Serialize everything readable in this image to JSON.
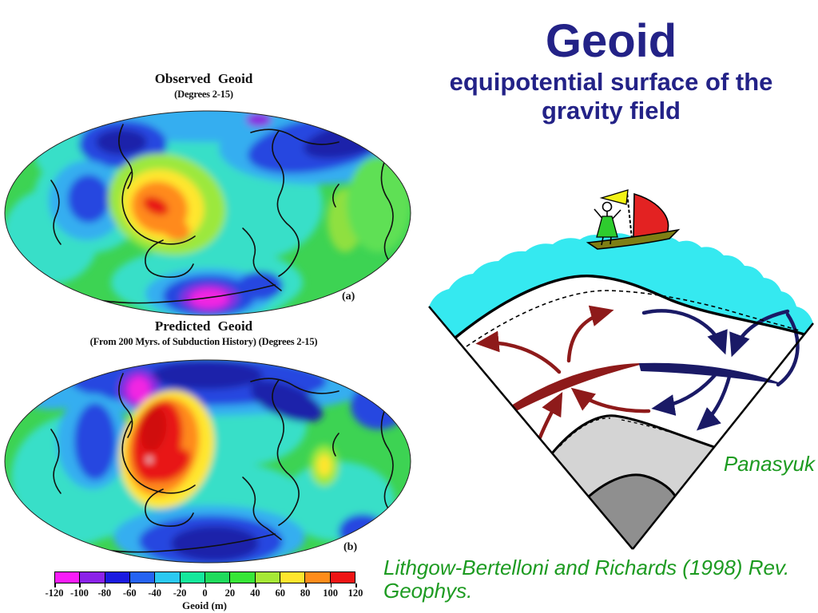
{
  "slide": {
    "title": "Geoid",
    "subtitle_line1": "equipotential surface of the",
    "subtitle_line2": "gravity field"
  },
  "figures": {
    "observed": {
      "title": "Observed Geoid",
      "subtitle": "(Degrees 2-15)",
      "panel_label": "(a)"
    },
    "predicted": {
      "title": "Predicted Geoid",
      "subtitle": "(From 200 Myrs. of Subduction History) (Degrees 2-15)",
      "panel_label": "(b)"
    },
    "colorbar": {
      "label": "Geoid (m)",
      "ticks": [
        "-120",
        "-100",
        "-80",
        "-60",
        "-40",
        "-20",
        "0",
        "20",
        "40",
        "60",
        "80",
        "100",
        "120"
      ],
      "segment_colors": [
        "#F81CF8",
        "#8B22E8",
        "#1A1AE0",
        "#2563F2",
        "#2BC9F2",
        "#14E89C",
        "#1FDB5C",
        "#37E637",
        "#A6E836",
        "#FFE52E",
        "#FF8C1A",
        "#EE1414"
      ]
    },
    "wedge_diagram": {
      "credit": "Panasyuk",
      "description": "cartoon cross-section of mantle convection beneath the ocean surface"
    }
  },
  "citation": {
    "text": "Lithgow-Bertelloni and Richards (1998) Rev. Geophys."
  },
  "colors": {
    "heading_text": "#232287",
    "accent_green": "#1D9B21",
    "water": "#35E9F0",
    "upwelling": "#8E1A1A",
    "downwelling": "#1A1A66",
    "outer_core": "#D4D4D4",
    "inner_core": "#8F8F8F",
    "boat_hull": "#7E7E14",
    "boat_sail": "#E32222",
    "boat_flag": "#F2F216",
    "sailor_dress": "#2ECC2E",
    "map_base": "#3DD353"
  }
}
